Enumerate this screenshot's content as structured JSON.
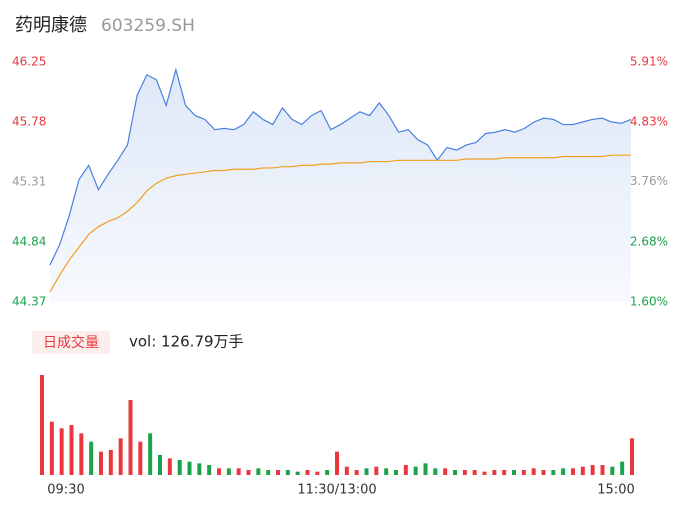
{
  "chart_data": {
    "type": "intraday",
    "title": "药明康德",
    "subtitle": "603259.SH",
    "volume_label": "日成交量",
    "volume_total": "vol: 126.79万手",
    "price": {
      "name": "price",
      "color": "#4a7fe0",
      "values": [
        44.66,
        44.82,
        45.05,
        45.33,
        45.44,
        45.25,
        45.37,
        45.48,
        45.6,
        45.99,
        46.15,
        46.11,
        45.91,
        46.19,
        45.91,
        45.83,
        45.8,
        45.72,
        45.73,
        45.72,
        45.76,
        45.86,
        45.8,
        45.76,
        45.89,
        45.8,
        45.76,
        45.83,
        45.87,
        45.72,
        45.76,
        45.81,
        45.86,
        45.83,
        45.93,
        45.83,
        45.7,
        45.72,
        45.64,
        45.6,
        45.48,
        45.58,
        45.56,
        45.6,
        45.62,
        45.69,
        45.7,
        45.72,
        45.7,
        45.73,
        45.78,
        45.81,
        45.8,
        45.76,
        45.76,
        45.78,
        45.8,
        45.81,
        45.78,
        45.77,
        45.8
      ]
    },
    "average": {
      "name": "average",
      "color": "#f0a020",
      "values": [
        44.45,
        44.58,
        44.7,
        44.8,
        44.9,
        44.96,
        45.0,
        45.03,
        45.08,
        45.15,
        45.24,
        45.3,
        45.34,
        45.36,
        45.37,
        45.38,
        45.39,
        45.4,
        45.4,
        45.41,
        45.41,
        45.41,
        45.42,
        45.42,
        45.43,
        45.43,
        45.44,
        45.44,
        45.45,
        45.45,
        45.46,
        45.46,
        45.46,
        45.47,
        45.47,
        45.47,
        45.48,
        45.48,
        45.48,
        45.48,
        45.48,
        45.48,
        45.48,
        45.49,
        45.49,
        45.49,
        45.49,
        45.5,
        45.5,
        45.5,
        45.5,
        45.5,
        45.5,
        45.51,
        45.51,
        45.51,
        45.51,
        45.51,
        45.52,
        45.52,
        45.52
      ]
    },
    "volume": {
      "name": "volume",
      "up_color": "#e8383d",
      "down_color": "#1aa34a",
      "values": [
        6.0,
        3.2,
        2.8,
        3.0,
        2.5,
        2.0,
        1.4,
        1.5,
        2.2,
        4.5,
        2.0,
        2.5,
        1.2,
        1.0,
        0.9,
        0.8,
        0.7,
        0.6,
        0.4,
        0.4,
        0.4,
        0.3,
        0.4,
        0.3,
        0.3,
        0.3,
        0.2,
        0.3,
        0.2,
        0.3,
        1.4,
        0.5,
        0.3,
        0.4,
        0.5,
        0.4,
        0.3,
        0.6,
        0.5,
        0.7,
        0.4,
        0.4,
        0.3,
        0.3,
        0.3,
        0.2,
        0.3,
        0.3,
        0.3,
        0.3,
        0.4,
        0.3,
        0.3,
        0.4,
        0.4,
        0.5,
        0.6,
        0.6,
        0.5,
        0.8,
        2.2
      ]
    },
    "xticks": [
      {
        "value": 0,
        "label": "09:30"
      },
      {
        "value": 30,
        "label": "11:30/13:00"
      },
      {
        "value": 60,
        "label": "15:00"
      }
    ],
    "xlim": [
      0,
      60
    ],
    "ylim": [
      44.37,
      46.25
    ],
    "yticks": [
      44.37,
      44.84,
      45.31,
      45.78,
      46.25
    ],
    "y2lim": [
      1.6,
      5.91
    ],
    "y2ticks": [
      {
        "value": 1.6,
        "label": "1.60%"
      },
      {
        "value": 2.68,
        "label": "2.68%"
      },
      {
        "value": 3.76,
        "label": "3.76%"
      },
      {
        "value": 4.83,
        "label": "4.83%"
      },
      {
        "value": 5.91,
        "label": "5.91%"
      }
    ],
    "tick_colors": [
      "#1aa34a",
      "#1aa34a",
      "#999999",
      "#e8383d",
      "#e8383d"
    ]
  }
}
